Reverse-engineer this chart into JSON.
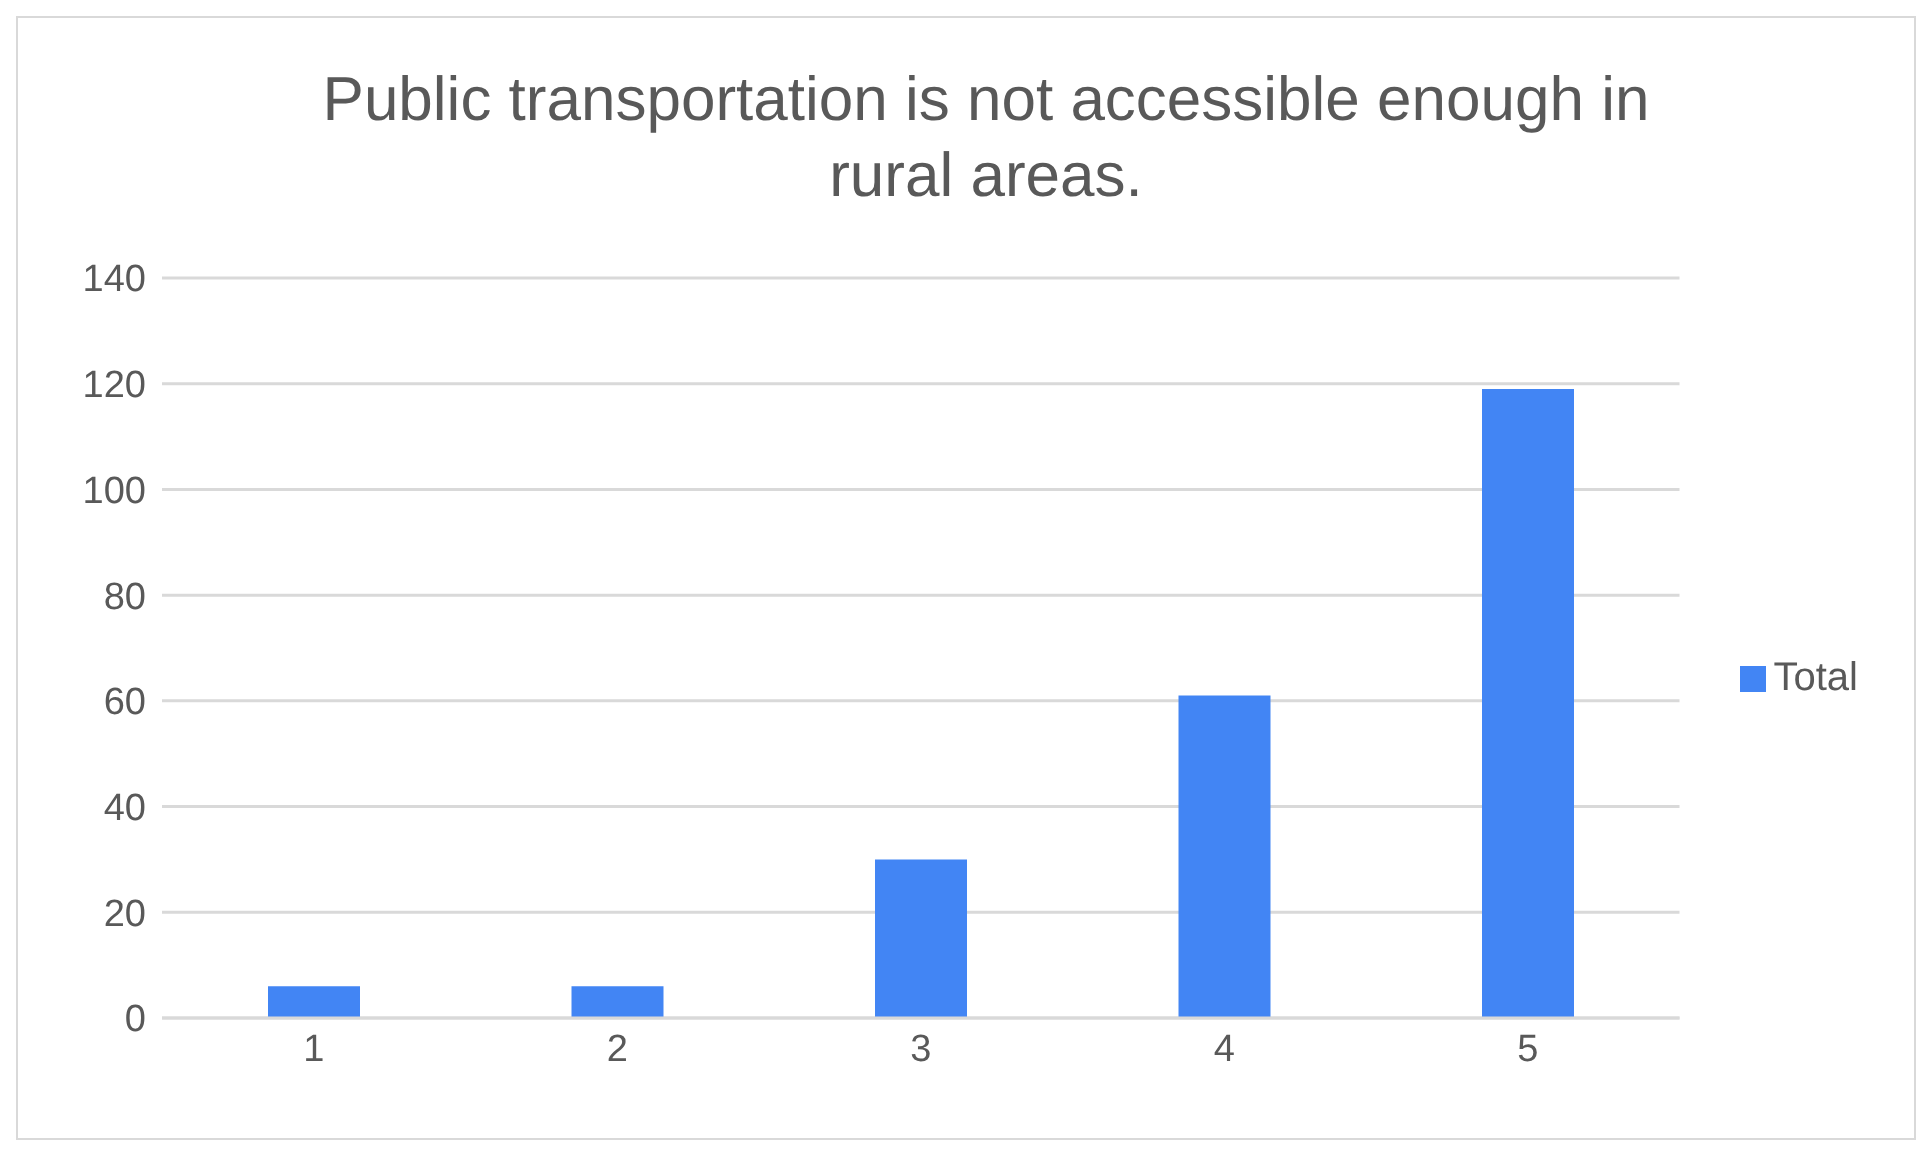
{
  "chart_data": {
    "type": "bar",
    "title": "Public transportation is not accessible enough in rural areas.",
    "categories": [
      "1",
      "2",
      "3",
      "4",
      "5"
    ],
    "series": [
      {
        "name": "Total",
        "color": "#4285f4",
        "values": [
          6,
          6,
          30,
          61,
          119
        ]
      }
    ],
    "ylim": [
      0,
      140
    ],
    "yticks": [
      0,
      20,
      40,
      60,
      80,
      100,
      120,
      140
    ],
    "grid": "y",
    "legend": "right"
  }
}
